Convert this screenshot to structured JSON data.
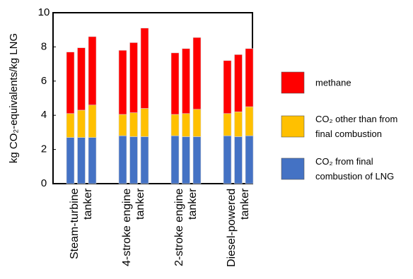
{
  "chart_data": {
    "type": "stacked-bar",
    "ylabel": "kg CO₂-equivalents/kg LNG",
    "groups": [
      "Steam-turbine\ntanker",
      "4-stroke engine\ntanker",
      "2-stroke engine\ntanker",
      "Diesel-powered\ntanker"
    ],
    "categories": [
      null,
      null,
      null,
      null,
      null,
      null,
      null,
      null,
      null,
      null,
      null,
      null
    ],
    "series": [
      {
        "name": "CO₂ from final\ncombustion of LNG",
        "color": "#4472c4",
        "values": [
          2.7,
          2.7,
          2.7,
          2.8,
          2.75,
          2.75,
          2.8,
          2.75,
          2.75,
          2.8,
          2.75,
          2.8
        ]
      },
      {
        "name": "CO₂ other than from\nfinal combustion",
        "color": "#ffc000",
        "values": [
          1.4,
          1.6,
          1.9,
          1.25,
          1.4,
          1.65,
          1.25,
          1.35,
          1.6,
          1.3,
          1.45,
          1.7
        ]
      },
      {
        "name": "methane",
        "color": "#ff0000",
        "values": [
          3.6,
          3.65,
          4.0,
          3.75,
          4.1,
          4.7,
          3.6,
          3.8,
          4.2,
          3.1,
          3.35,
          3.4
        ]
      }
    ],
    "ylim": [
      0,
      10
    ],
    "yticks": [
      0,
      2,
      4,
      6,
      8,
      10
    ],
    "grid": false
  }
}
